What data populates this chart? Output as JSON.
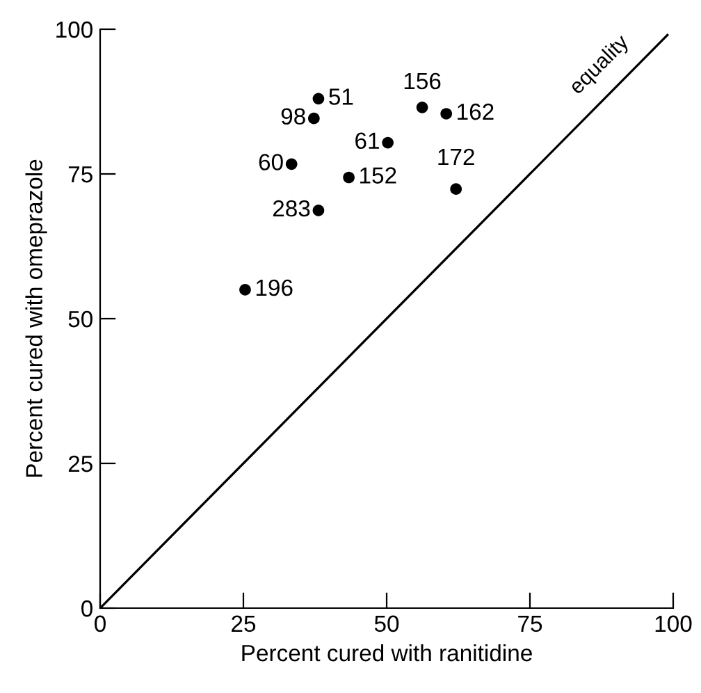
{
  "chart_data": {
    "type": "scatter",
    "xlabel": "Percent cured with ranitidine",
    "ylabel": "Percent cured with omeprazole",
    "xlim": [
      0,
      100
    ],
    "ylim": [
      0,
      100
    ],
    "xticks": [
      0,
      25,
      50,
      75,
      100
    ],
    "yticks": [
      0,
      25,
      50,
      75,
      100
    ],
    "grid": false,
    "legend": false,
    "annotations": [
      {
        "text": "51",
        "x": 38.1,
        "y": 88.0
      },
      {
        "text": "98",
        "x": 37.3,
        "y": 84.6
      },
      {
        "text": "156",
        "x": 56.2,
        "y": 86.5
      },
      {
        "text": "162",
        "x": 60.4,
        "y": 85.4
      },
      {
        "text": "61",
        "x": 50.2,
        "y": 80.4
      },
      {
        "text": "60",
        "x": 33.4,
        "y": 76.7
      },
      {
        "text": "152",
        "x": 43.4,
        "y": 74.4
      },
      {
        "text": "172",
        "x": 62.1,
        "y": 72.4
      },
      {
        "text": "283",
        "x": 38.1,
        "y": 68.7
      },
      {
        "text": "196",
        "x": 25.3,
        "y": 55.0
      }
    ],
    "series": [
      {
        "color": "#000000",
        "marker": "circle",
        "x": [
          38.1,
          37.3,
          56.2,
          60.4,
          50.2,
          33.4,
          43.4,
          62.1,
          38.1,
          25.3
        ],
        "values": [
          88.0,
          84.6,
          86.5,
          85.4,
          80.4,
          76.7,
          74.4,
          72.4,
          68.7,
          55.0
        ]
      },
      {
        "type": "line",
        "name": "equality",
        "color": "#000000",
        "line_style": "solid",
        "x": [
          0,
          99
        ],
        "values": [
          0,
          99
        ]
      }
    ]
  }
}
